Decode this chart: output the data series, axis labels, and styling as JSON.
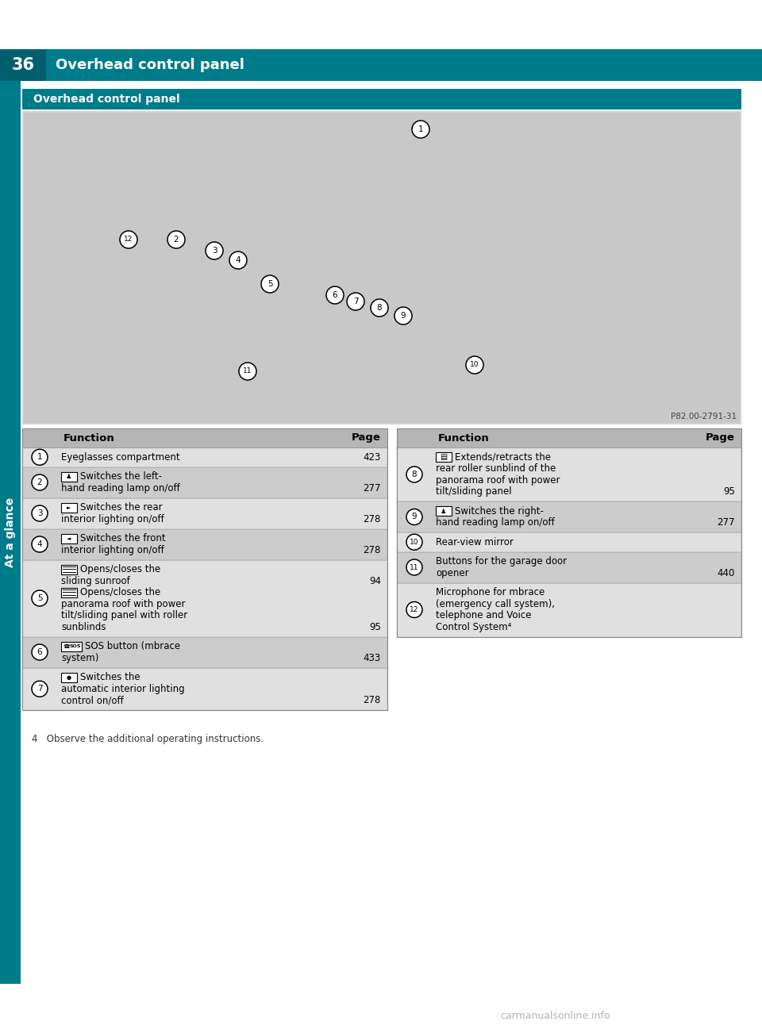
{
  "page_num": "36",
  "header_title": "Overhead control panel",
  "teal_color": "#007b8a",
  "teal_dark": "#005f6e",
  "sidebar_label": "At a glance",
  "bg_color": "#ffffff",
  "photo_credit": "P82.00-2791-31",
  "footnote": "4   Observe the additional operating instructions.",
  "watermark": "carmanualsonline.info",
  "left_rows": [
    {
      "num": "1",
      "lines": [
        "Eyeglasses compartment"
      ],
      "pages": [
        "423"
      ],
      "bg": "#e0e0e0",
      "icon_lines": []
    },
    {
      "num": "2",
      "lines": [
        "[L] Switches the left-",
        "hand reading lamp on/off"
      ],
      "pages": [
        "",
        "277"
      ],
      "bg": "#cccccc",
      "icon_lines": [
        0
      ]
    },
    {
      "num": "3",
      "lines": [
        "[R] Switches the rear",
        "interior lighting on/off"
      ],
      "pages": [
        "",
        "278"
      ],
      "bg": "#e0e0e0",
      "icon_lines": [
        0
      ]
    },
    {
      "num": "4",
      "lines": [
        "[F] Switches the front",
        "interior lighting on/off"
      ],
      "pages": [
        "",
        "278"
      ],
      "bg": "#cccccc",
      "icon_lines": [
        0
      ]
    },
    {
      "num": "5",
      "lines": [
        "[S] Opens/closes the",
        "sliding sunroof",
        "[S2] Opens/closes the",
        "panorama roof with power",
        "tilt/sliding panel with roller",
        "sunblinds"
      ],
      "pages": [
        "",
        "94",
        "",
        "",
        "",
        "95"
      ],
      "bg": "#e0e0e0",
      "icon_lines": [
        0,
        2
      ]
    },
    {
      "num": "6",
      "lines": [
        "[SOS] SOS button (mbrace",
        "system)"
      ],
      "pages": [
        "",
        "433"
      ],
      "bg": "#cccccc",
      "icon_lines": [
        0
      ]
    },
    {
      "num": "7",
      "lines": [
        "[A] Switches the",
        "automatic interior lighting",
        "control on/off"
      ],
      "pages": [
        "",
        "",
        "278"
      ],
      "bg": "#e0e0e0",
      "icon_lines": [
        0
      ]
    }
  ],
  "right_rows": [
    {
      "num": "8",
      "lines": [
        "[B] Extends/retracts the",
        "rear roller sunblind of the",
        "panorama roof with power",
        "tilt/sliding panel"
      ],
      "pages": [
        "",
        "",
        "",
        "95"
      ],
      "bg": "#e0e0e0",
      "icon_lines": [
        0
      ]
    },
    {
      "num": "9",
      "lines": [
        "[L] Switches the right-",
        "hand reading lamp on/off"
      ],
      "pages": [
        "",
        "277"
      ],
      "bg": "#cccccc",
      "icon_lines": [
        0
      ]
    },
    {
      "num": "10",
      "lines": [
        "Rear-view mirror"
      ],
      "pages": [
        ""
      ],
      "bg": "#e0e0e0",
      "icon_lines": []
    },
    {
      "num": "11",
      "lines": [
        "Buttons for the garage door",
        "opener"
      ],
      "pages": [
        "",
        "440"
      ],
      "bg": "#cccccc",
      "icon_lines": []
    },
    {
      "num": "12",
      "lines": [
        "Microphone for mbrace",
        "(emergency call system),",
        "telephone and Voice",
        "Control System⁴"
      ],
      "pages": [
        "",
        "",
        "",
        ""
      ],
      "bg": "#e0e0e0",
      "icon_lines": []
    }
  ]
}
